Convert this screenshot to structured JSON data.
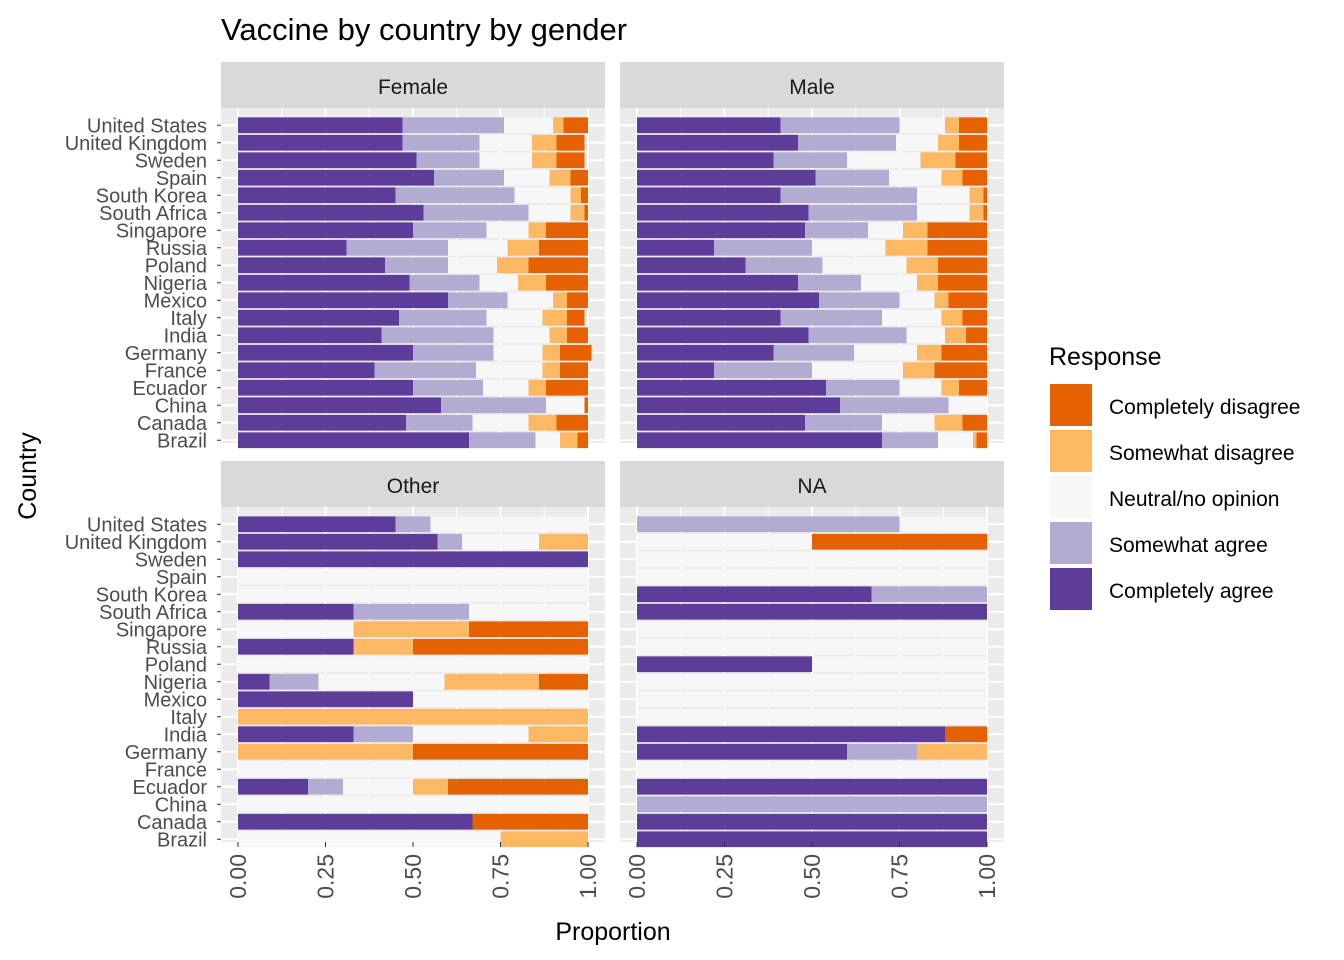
{
  "chart_data": {
    "type": "bar",
    "orientation": "horizontal",
    "stacked": true,
    "title": "Vaccine by country by gender",
    "xlabel": "Proportion",
    "ylabel": "Country",
    "xlim": [
      0,
      1
    ],
    "x_ticks": [
      "0.00",
      "0.25",
      "0.50",
      "0.75",
      "1.00"
    ],
    "grid": true,
    "legend_position": "right",
    "legend_title": "Response",
    "categories": [
      "United States",
      "United Kingdom",
      "Sweden",
      "Spain",
      "South Korea",
      "South Africa",
      "Singapore",
      "Russia",
      "Poland",
      "Nigeria",
      "Mexico",
      "Italy",
      "India",
      "Germany",
      "France",
      "Ecuador",
      "China",
      "Canada",
      "Brazil"
    ],
    "responses": [
      {
        "name": "Completely agree",
        "color": "#5e3c99"
      },
      {
        "name": "Somewhat agree",
        "color": "#b2abd2"
      },
      {
        "name": "Neutral/no opinion",
        "color": "#f7f7f7"
      },
      {
        "name": "Somewhat disagree",
        "color": "#fdb863"
      },
      {
        "name": "Completely disagree",
        "color": "#e66101"
      }
    ],
    "legend_order": [
      "Completely disagree",
      "Somewhat disagree",
      "Neutral/no opinion",
      "Somewhat agree",
      "Completely agree"
    ],
    "panels": [
      {
        "label": "Female",
        "bars": [
          [
            0.47,
            0.29,
            0.14,
            0.03,
            0.07
          ],
          [
            0.47,
            0.22,
            0.15,
            0.07,
            0.08
          ],
          [
            0.51,
            0.18,
            0.15,
            0.07,
            0.08
          ],
          [
            0.56,
            0.2,
            0.13,
            0.06,
            0.05
          ],
          [
            0.45,
            0.34,
            0.16,
            0.03,
            0.02
          ],
          [
            0.53,
            0.3,
            0.12,
            0.04,
            0.01
          ],
          [
            0.5,
            0.21,
            0.12,
            0.05,
            0.12
          ],
          [
            0.31,
            0.29,
            0.17,
            0.09,
            0.14
          ],
          [
            0.42,
            0.18,
            0.14,
            0.09,
            0.17
          ],
          [
            0.49,
            0.2,
            0.11,
            0.08,
            0.12
          ],
          [
            0.6,
            0.17,
            0.13,
            0.04,
            0.06
          ],
          [
            0.46,
            0.25,
            0.16,
            0.07,
            0.05
          ],
          [
            0.41,
            0.32,
            0.16,
            0.05,
            0.06
          ],
          [
            0.5,
            0.23,
            0.14,
            0.05,
            0.09
          ],
          [
            0.39,
            0.29,
            0.19,
            0.05,
            0.08
          ],
          [
            0.5,
            0.2,
            0.13,
            0.05,
            0.12
          ],
          [
            0.58,
            0.3,
            0.11,
            0.0,
            0.01
          ],
          [
            0.48,
            0.19,
            0.16,
            0.08,
            0.09
          ],
          [
            0.66,
            0.19,
            0.07,
            0.05,
            0.03
          ]
        ]
      },
      {
        "label": "Male",
        "bars": [
          [
            0.41,
            0.34,
            0.13,
            0.04,
            0.08
          ],
          [
            0.46,
            0.28,
            0.12,
            0.06,
            0.08
          ],
          [
            0.39,
            0.21,
            0.21,
            0.1,
            0.09
          ],
          [
            0.51,
            0.21,
            0.15,
            0.06,
            0.07
          ],
          [
            0.41,
            0.39,
            0.15,
            0.04,
            0.01
          ],
          [
            0.49,
            0.31,
            0.15,
            0.04,
            0.01
          ],
          [
            0.48,
            0.18,
            0.1,
            0.07,
            0.17
          ],
          [
            0.22,
            0.28,
            0.21,
            0.12,
            0.17
          ],
          [
            0.31,
            0.22,
            0.24,
            0.09,
            0.14
          ],
          [
            0.46,
            0.18,
            0.16,
            0.06,
            0.14
          ],
          [
            0.52,
            0.23,
            0.1,
            0.04,
            0.11
          ],
          [
            0.41,
            0.29,
            0.17,
            0.06,
            0.07
          ],
          [
            0.49,
            0.28,
            0.11,
            0.06,
            0.06
          ],
          [
            0.39,
            0.23,
            0.18,
            0.07,
            0.13
          ],
          [
            0.22,
            0.28,
            0.26,
            0.09,
            0.15
          ],
          [
            0.54,
            0.21,
            0.12,
            0.05,
            0.08
          ],
          [
            0.58,
            0.31,
            0.11,
            0.0,
            0.0
          ],
          [
            0.48,
            0.22,
            0.15,
            0.08,
            0.07
          ],
          [
            0.7,
            0.16,
            0.1,
            0.01,
            0.03
          ]
        ]
      },
      {
        "label": "Other",
        "bars": [
          [
            0.45,
            0.1,
            0.45,
            0.0,
            0.0
          ],
          [
            0.57,
            0.07,
            0.22,
            0.14,
            0.0
          ],
          [
            1.0,
            0.0,
            0.0,
            0.0,
            0.0
          ],
          [
            0.0,
            0.0,
            1.0,
            0.0,
            0.0
          ],
          [
            0.0,
            0.0,
            1.0,
            0.0,
            0.0
          ],
          [
            0.33,
            0.33,
            0.34,
            0.0,
            0.0
          ],
          [
            0.0,
            0.0,
            0.33,
            0.33,
            0.34
          ],
          [
            0.33,
            0.0,
            0.0,
            0.17,
            0.5
          ],
          [
            0.0,
            0.0,
            1.0,
            0.0,
            0.0
          ],
          [
            0.09,
            0.14,
            0.36,
            0.27,
            0.14
          ],
          [
            0.5,
            0.0,
            0.5,
            0.0,
            0.0
          ],
          [
            0.0,
            0.0,
            0.0,
            1.0,
            0.0
          ],
          [
            0.33,
            0.17,
            0.33,
            0.17,
            0.0
          ],
          [
            0.0,
            0.0,
            0.0,
            0.5,
            0.5
          ],
          [
            0.0,
            0.0,
            1.0,
            0.0,
            0.0
          ],
          [
            0.2,
            0.1,
            0.2,
            0.1,
            0.4
          ],
          [
            0.0,
            0.0,
            1.0,
            0.0,
            0.0
          ],
          [
            0.67,
            0.0,
            0.0,
            0.0,
            0.33
          ],
          [
            0.0,
            0.0,
            0.75,
            0.25,
            0.0
          ]
        ]
      },
      {
        "label": "NA",
        "bars": [
          [
            0.0,
            0.75,
            0.25,
            0.0,
            0.0
          ],
          [
            0.0,
            0.0,
            0.5,
            0.0,
            0.5
          ],
          [
            0.0,
            0.0,
            1.0,
            0.0,
            0.0
          ],
          [
            0.0,
            0.0,
            1.0,
            0.0,
            0.0
          ],
          [
            0.67,
            0.33,
            0.0,
            0.0,
            0.0
          ],
          [
            1.0,
            0.0,
            0.0,
            0.0,
            0.0
          ],
          [
            0.0,
            0.0,
            1.0,
            0.0,
            0.0
          ],
          [
            0.0,
            0.0,
            1.0,
            0.0,
            0.0
          ],
          [
            0.5,
            0.0,
            0.5,
            0.0,
            0.0
          ],
          [
            0.0,
            0.0,
            1.0,
            0.0,
            0.0
          ],
          [
            0.0,
            0.0,
            1.0,
            0.0,
            0.0
          ],
          [
            0.0,
            0.0,
            1.0,
            0.0,
            0.0
          ],
          [
            0.88,
            0.0,
            0.0,
            0.0,
            0.12
          ],
          [
            0.6,
            0.2,
            0.0,
            0.2,
            0.0
          ],
          [
            0.0,
            0.0,
            1.0,
            0.0,
            0.0
          ],
          [
            1.0,
            0.0,
            0.0,
            0.0,
            0.0
          ],
          [
            0.0,
            1.0,
            0.0,
            0.0,
            0.0
          ],
          [
            1.0,
            0.0,
            0.0,
            0.0,
            0.0
          ],
          [
            1.0,
            0.0,
            0.0,
            0.0,
            0.0
          ]
        ]
      }
    ]
  }
}
